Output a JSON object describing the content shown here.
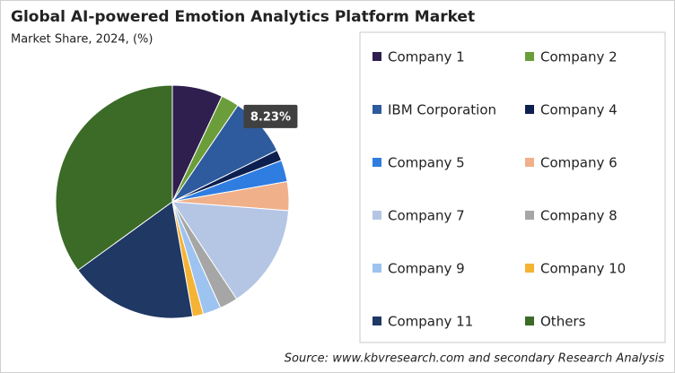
{
  "chart_data": {
    "type": "pie",
    "title": "Global AI-powered Emotion Analytics Platform Market",
    "subtitle": "Market Share, 2024, (%)",
    "categories": [
      "Company 1",
      "Company 2",
      "IBM Corporation",
      "Company 4",
      "Company 5",
      "Company 6",
      "Company 7",
      "Company 8",
      "Company 9",
      "Company 10",
      "Company 11",
      "Others"
    ],
    "values": [
      7,
      2.5,
      8.23,
      1.5,
      3,
      4,
      14.5,
      2.5,
      2.5,
      1.5,
      17.8,
      35
    ],
    "value_labels": [
      null,
      null,
      "8.23%",
      null,
      null,
      null,
      null,
      null,
      null,
      null,
      null,
      null
    ],
    "colors": [
      "#2e1f4f",
      "#6b9e3a",
      "#2e5a9e",
      "#0d1f4f",
      "#2f7de0",
      "#f0b08a",
      "#b4c6e4",
      "#a6a6a6",
      "#9dc3f0",
      "#f5b335",
      "#1f3864",
      "#3b6b27"
    ],
    "legend": "right",
    "source": "Source: www.kbvresearch.com and secondary Research Analysis"
  }
}
